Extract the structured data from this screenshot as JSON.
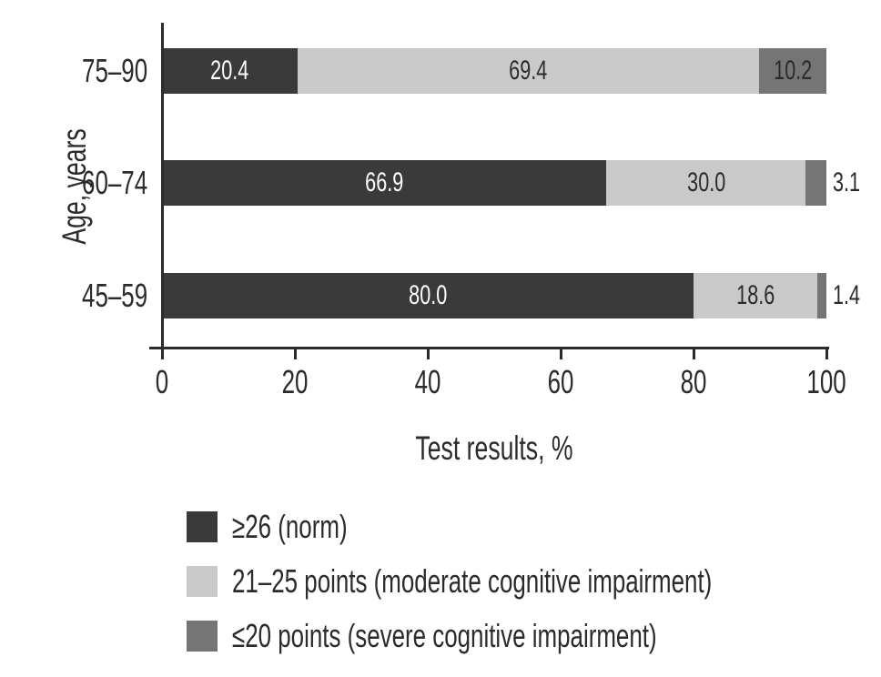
{
  "chart_data": {
    "type": "bar",
    "orientation": "horizontal",
    "stacked": true,
    "categories": [
      "75–90",
      "60–74",
      "45–59"
    ],
    "categories_order": "top to bottom",
    "series": [
      {
        "key": "norm",
        "name": "≥26 (norm)",
        "color": "#3a3a3a",
        "label_color": "#ffffff",
        "values": [
          20.4,
          66.9,
          80.0
        ],
        "labels": [
          "20.4",
          "66.9",
          "80.0"
        ]
      },
      {
        "key": "moderate",
        "name": "21–25 points (moderate cognitive impairment)",
        "color": "#c9c9c9",
        "label_color": "#2b2b2b",
        "values": [
          69.4,
          30.0,
          18.6
        ],
        "labels": [
          "69.4",
          "30.0",
          "18.6"
        ]
      },
      {
        "key": "severe",
        "name": "≤20 points (severe cognitive impairment)",
        "color": "#757575",
        "label_color": "#2b2b2b",
        "values": [
          10.2,
          3.1,
          1.4
        ],
        "labels": [
          "10.2",
          "3.1",
          "1.4"
        ]
      }
    ],
    "xlabel": "Test results, %",
    "ylabel": "Age, years",
    "xlim": [
      0,
      100
    ],
    "xticks": [
      0,
      20,
      40,
      60,
      80,
      100
    ],
    "xtick_labels": [
      "0",
      "20",
      "40",
      "60",
      "80",
      "100"
    ],
    "grid": "off",
    "legend_position": "bottom-left",
    "axis_color": "#2b2b2b",
    "text_color": "#2b2b2b",
    "background": "#ffffff"
  }
}
